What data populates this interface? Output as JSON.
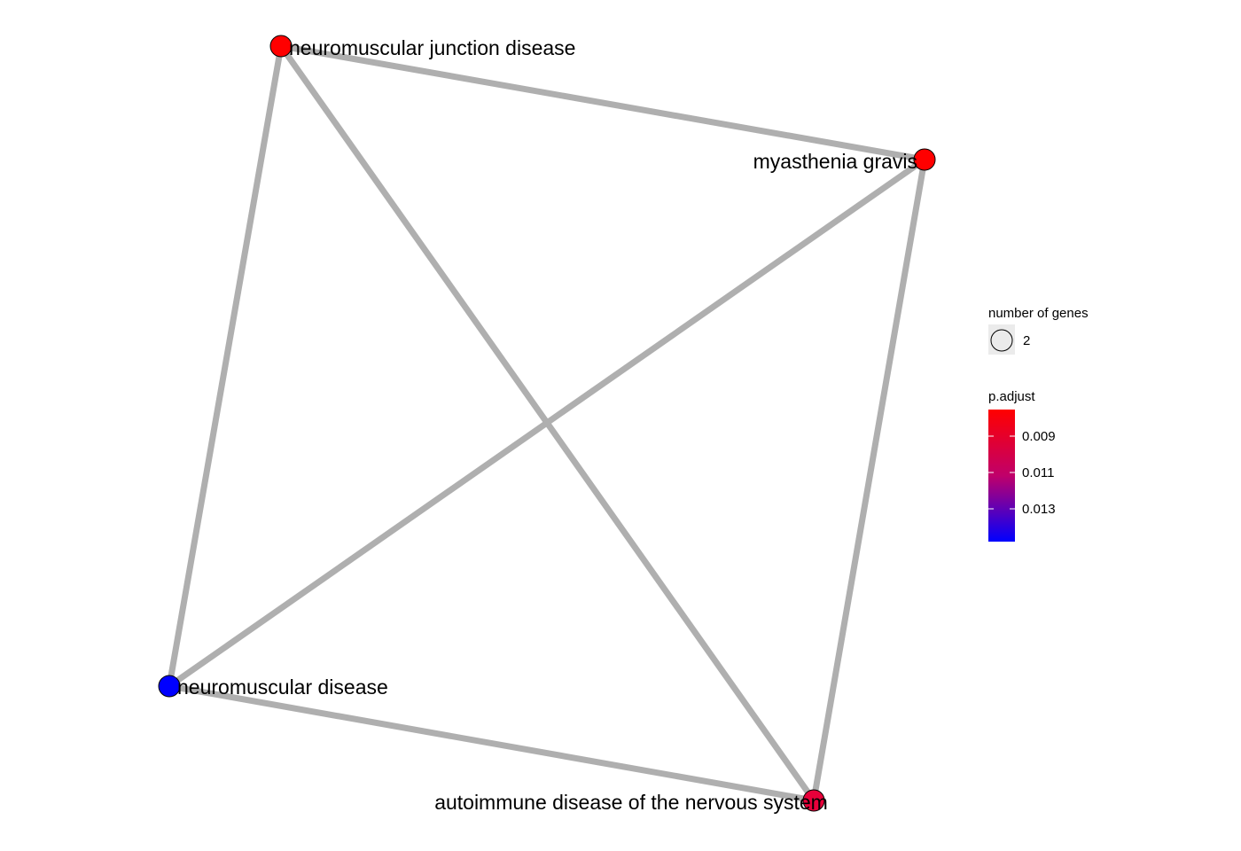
{
  "network": {
    "nodes": [
      {
        "id": "njd",
        "label": "neuromuscular junction disease",
        "color": "#ff0000"
      },
      {
        "id": "mg",
        "label": "myasthenia gravis",
        "color": "#ff0000"
      },
      {
        "id": "nd",
        "label": "neuromuscular disease",
        "color": "#0000ff"
      },
      {
        "id": "adns",
        "label": "autoimmune disease of the nervous system",
        "color": "#e8003a"
      }
    ],
    "edges": [
      [
        "njd",
        "mg"
      ],
      [
        "njd",
        "nd"
      ],
      [
        "njd",
        "adns"
      ],
      [
        "mg",
        "nd"
      ],
      [
        "mg",
        "adns"
      ],
      [
        "nd",
        "adns"
      ]
    ],
    "edge_color": "#afafaf"
  },
  "legend": {
    "size_title": "number of genes",
    "size_value": "2",
    "color_title": "p.adjust",
    "color_ticks": [
      "0.009",
      "0.011",
      "0.013"
    ],
    "gradient_top": "#ff0000",
    "gradient_bottom": "#0000ff"
  }
}
